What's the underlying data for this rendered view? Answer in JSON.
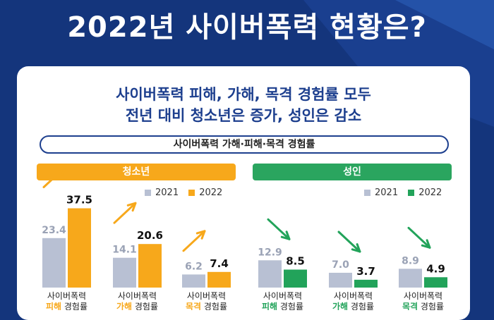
{
  "page": {
    "title": "2022년 사이버폭력 현황은?"
  },
  "headline": {
    "line1": "사이버폭력 피해, 가해, 목격 경험률 모두",
    "line2": "전년 대비 청소년은 증가, 성인은 감소"
  },
  "chart_data": {
    "type": "bar",
    "title": "사이버폭력 가해·피해·목격 경험률",
    "colors": {
      "2021": "#b8c0d3",
      "teen_2022": "#f7a81b",
      "adult_2022": "#22a35a",
      "arrow_up": "#f7a81b",
      "arrow_down": "#22a35a"
    },
    "groups": [
      {
        "name": "청소년",
        "legend": [
          "2021",
          "2022"
        ],
        "categories": [
          {
            "label_top": "사이버폭력",
            "label_accent": "피해",
            "label_rest": " 경험률",
            "values": [
              23.4,
              37.5
            ],
            "trend": "up"
          },
          {
            "label_top": "사이버폭력",
            "label_accent": "가해",
            "label_rest": " 경험률",
            "values": [
              14.1,
              20.6
            ],
            "trend": "up"
          },
          {
            "label_top": "사이버폭력",
            "label_accent": "목격",
            "label_rest": " 경험률",
            "values": [
              6.2,
              7.4
            ],
            "trend": "up"
          }
        ]
      },
      {
        "name": "성인",
        "legend": [
          "2021",
          "2022"
        ],
        "categories": [
          {
            "label_top": "사이버폭력",
            "label_accent": "피해",
            "label_rest": " 경험률",
            "values": [
              12.9,
              8.5
            ],
            "trend": "down"
          },
          {
            "label_top": "사이버폭력",
            "label_accent": "가해",
            "label_rest": " 경험률",
            "values": [
              7.0,
              3.7
            ],
            "trend": "down"
          },
          {
            "label_top": "사이버폭력",
            "label_accent": "목격",
            "label_rest": " 경험률",
            "values": [
              8.9,
              4.9
            ],
            "trend": "down"
          }
        ]
      }
    ]
  }
}
